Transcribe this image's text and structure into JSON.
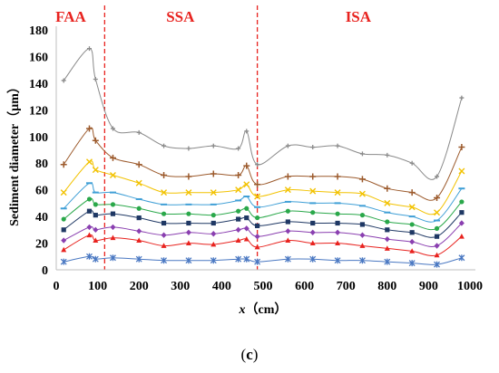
{
  "panel": {
    "open": "(",
    "letter": "c",
    "close": ")"
  },
  "chart_data": {
    "type": "line",
    "title": "",
    "xlabel": {
      "var": "x",
      "unit": "（cm）"
    },
    "ylabel": "Sediment diameter（μm）",
    "xlim": [
      0,
      1000
    ],
    "ylim": [
      0,
      180
    ],
    "xticks": [
      0,
      100,
      200,
      300,
      400,
      500,
      600,
      700,
      800,
      900,
      1000
    ],
    "yticks": [
      0,
      20,
      40,
      60,
      80,
      100,
      120,
      140,
      160,
      180
    ],
    "grid": false,
    "legend": false,
    "region_dividers": [
      117,
      486
    ],
    "regions": [
      {
        "label": "FAA",
        "color": "#e8231f",
        "center": 35
      },
      {
        "label": "SSA",
        "color": "#e8231f",
        "center": 300
      },
      {
        "label": "ISA",
        "color": "#e8231f",
        "center": 730
      }
    ],
    "x": [
      18,
      80,
      95,
      137,
      200,
      260,
      320,
      380,
      440,
      460,
      486,
      560,
      620,
      680,
      740,
      800,
      860,
      920,
      980
    ],
    "series": [
      {
        "color": "#4a78c2",
        "marker": "x-star",
        "values": [
          6,
          10,
          8,
          9,
          8,
          7,
          7,
          7,
          8,
          8,
          6,
          8,
          8,
          7,
          7,
          6,
          5,
          4,
          9
        ]
      },
      {
        "color": "#e8231f",
        "marker": "triangle",
        "values": [
          15,
          26,
          22,
          24,
          22,
          18,
          20,
          19,
          22,
          23,
          17,
          22,
          20,
          20,
          18,
          16,
          14,
          11,
          25
        ]
      },
      {
        "color": "#8a3fb0",
        "marker": "diamond",
        "values": [
          22,
          32,
          30,
          32,
          29,
          26,
          28,
          27,
          30,
          31,
          25,
          29,
          28,
          28,
          26,
          23,
          21,
          18,
          35
        ]
      },
      {
        "color": "#1f3864",
        "marker": "square",
        "values": [
          30,
          44,
          41,
          42,
          39,
          35,
          35,
          35,
          38,
          39,
          33,
          36,
          35,
          35,
          34,
          30,
          28,
          25,
          43
        ]
      },
      {
        "color": "#2aa84a",
        "marker": "circle",
        "values": [
          38,
          53,
          49,
          49,
          46,
          42,
          42,
          41,
          44,
          46,
          39,
          44,
          43,
          42,
          41,
          36,
          34,
          31,
          51
        ]
      },
      {
        "color": "#3f9fd6",
        "marker": "dash",
        "values": [
          46,
          65,
          58,
          58,
          53,
          49,
          49,
          49,
          52,
          55,
          47,
          51,
          50,
          50,
          48,
          43,
          40,
          37,
          61
        ]
      },
      {
        "color": "#f2c200",
        "marker": "x",
        "values": [
          58,
          81,
          75,
          71,
          65,
          58,
          58,
          58,
          60,
          64,
          55,
          60,
          59,
          58,
          57,
          50,
          47,
          43,
          74
        ]
      },
      {
        "color": "#9c5a2c",
        "marker": "plus",
        "values": [
          79,
          106,
          97,
          84,
          79,
          71,
          70,
          72,
          71,
          78,
          64,
          70,
          70,
          70,
          68,
          61,
          58,
          54,
          92
        ]
      },
      {
        "color": "#8a8a8a",
        "marker": "small-plus",
        "values": [
          142,
          166,
          143,
          106,
          103,
          93,
          91,
          93,
          91,
          104,
          79,
          93,
          92,
          93,
          87,
          86,
          80,
          70,
          129
        ]
      }
    ]
  }
}
